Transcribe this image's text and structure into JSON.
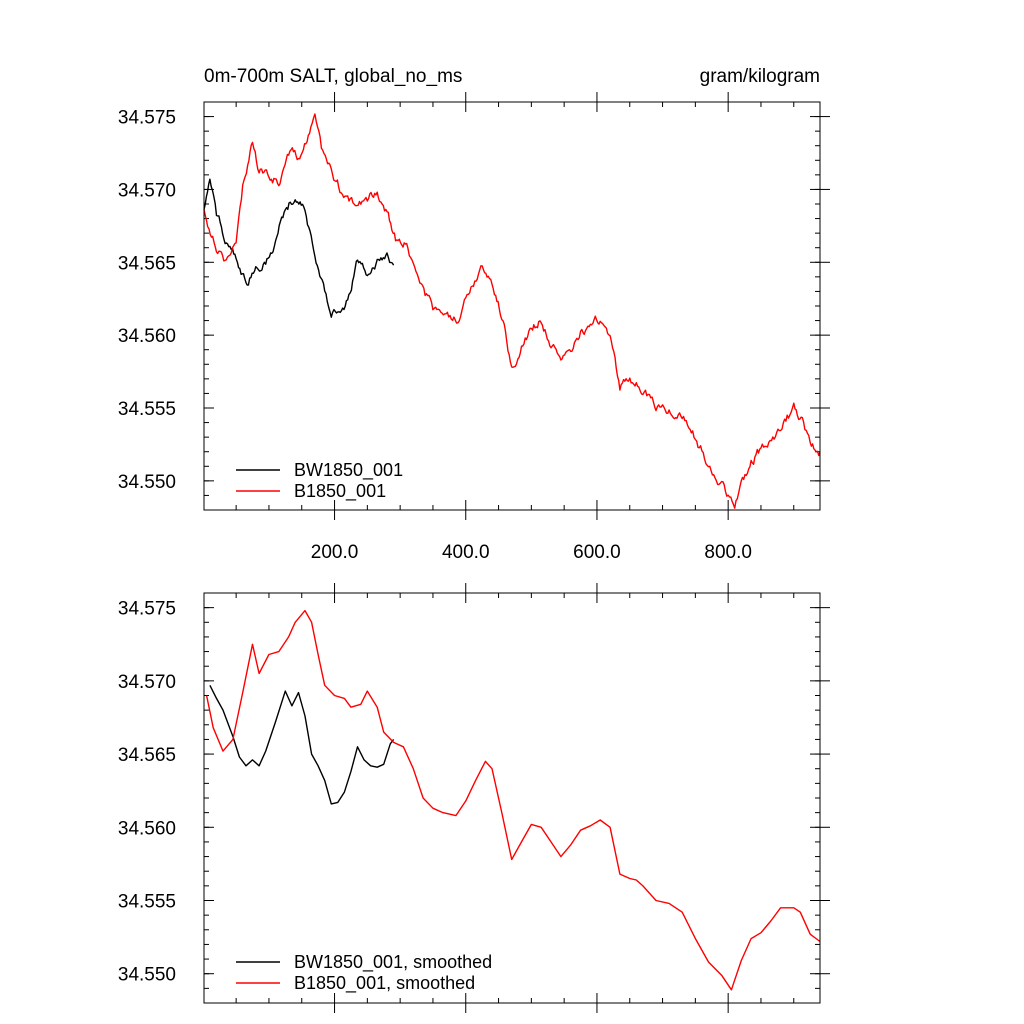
{
  "chart_data": [
    {
      "type": "line",
      "title": "0m-700m SALT, global_no_ms",
      "units": "gram/kilogram",
      "xlim": [
        1,
        940
      ],
      "ylim": [
        34.548,
        34.576
      ],
      "xticks": [
        200,
        400,
        600,
        800
      ],
      "xtick_labels": [
        "200.0",
        "400.0",
        "600.0",
        "800.0"
      ],
      "yticks": [
        34.55,
        34.555,
        34.56,
        34.565,
        34.57,
        34.575
      ],
      "ytick_labels": [
        "34.550",
        "34.555",
        "34.560",
        "34.565",
        "34.570",
        "34.575"
      ],
      "legend_position": "bottom-left",
      "series": [
        {
          "name": "BW1850_001",
          "color": "#000000",
          "x": [
            1,
            10,
            20,
            35,
            50,
            65,
            80,
            95,
            110,
            125,
            140,
            155,
            170,
            185,
            195,
            205,
            220,
            235,
            250,
            265,
            280,
            290
          ],
          "y": [
            34.5685,
            34.5705,
            34.5682,
            34.5665,
            34.5652,
            34.5634,
            34.5645,
            34.5652,
            34.5662,
            34.5688,
            34.5696,
            34.569,
            34.565,
            34.5628,
            34.561,
            34.5617,
            34.5625,
            34.5652,
            34.5643,
            34.565,
            34.5658,
            34.5648
          ]
        },
        {
          "name": "B1850_001",
          "color": "#ff0000",
          "x": [
            1,
            20,
            35,
            50,
            60,
            75,
            85,
            100,
            115,
            130,
            145,
            160,
            170,
            180,
            195,
            210,
            230,
            250,
            265,
            280,
            295,
            310,
            330,
            350,
            370,
            390,
            410,
            425,
            440,
            455,
            470,
            485,
            500,
            515,
            530,
            545,
            560,
            575,
            590,
            605,
            620,
            635,
            650,
            670,
            690,
            710,
            730,
            750,
            770,
            790,
            810,
            820,
            835,
            850,
            860,
            880,
            900,
            915,
            925,
            940
          ],
          "y": [
            34.5685,
            34.5662,
            34.5652,
            34.5662,
            34.57,
            34.5735,
            34.5712,
            34.571,
            34.5705,
            34.5725,
            34.5722,
            34.5735,
            34.5753,
            34.5728,
            34.5712,
            34.57,
            34.5688,
            34.5692,
            34.57,
            34.5685,
            34.5665,
            34.5662,
            34.5635,
            34.5618,
            34.5612,
            34.5608,
            34.5635,
            34.5648,
            34.5638,
            34.5612,
            34.558,
            34.5592,
            34.5605,
            34.561,
            34.5595,
            34.558,
            34.5588,
            34.5602,
            34.5608,
            34.561,
            34.56,
            34.5565,
            34.557,
            34.5562,
            34.5552,
            34.5548,
            34.5545,
            34.553,
            34.5512,
            34.5498,
            34.5482,
            34.5495,
            34.5512,
            34.5522,
            34.5528,
            34.5535,
            34.555,
            34.554,
            34.5525,
            34.552
          ]
        }
      ]
    },
    {
      "type": "line",
      "title": "",
      "xlim": [
        1,
        940
      ],
      "ylim": [
        34.548,
        34.576
      ],
      "yticks": [
        34.55,
        34.555,
        34.56,
        34.565,
        34.57,
        34.575
      ],
      "ytick_labels": [
        "34.550",
        "34.555",
        "34.560",
        "34.565",
        "34.570",
        "34.575"
      ],
      "legend_position": "bottom-left",
      "series": [
        {
          "name": "BW1850_001, smoothed",
          "color": "#000000",
          "x": [
            10,
            20,
            30,
            45,
            55,
            65,
            75,
            85,
            95,
            110,
            125,
            135,
            145,
            155,
            165,
            175,
            185,
            195,
            205,
            215,
            225,
            235,
            245,
            255,
            265,
            275,
            285,
            290
          ],
          "y": [
            34.5697,
            34.5688,
            34.568,
            34.5662,
            34.5648,
            34.5642,
            34.5646,
            34.5642,
            34.5652,
            34.5672,
            34.5693,
            34.5683,
            34.5692,
            34.5676,
            34.565,
            34.5642,
            34.5632,
            34.5616,
            34.5617,
            34.5624,
            34.5638,
            34.5655,
            34.5646,
            34.5642,
            34.5641,
            34.5643,
            34.5657,
            34.566
          ]
        },
        {
          "name": "B1850_001, smoothed",
          "color": "#ff0000",
          "x": [
            5,
            15,
            30,
            45,
            60,
            75,
            85,
            100,
            115,
            130,
            140,
            155,
            165,
            175,
            185,
            200,
            215,
            225,
            240,
            250,
            265,
            275,
            290,
            305,
            320,
            335,
            350,
            365,
            385,
            400,
            415,
            430,
            440,
            455,
            470,
            485,
            500,
            515,
            530,
            545,
            560,
            575,
            590,
            605,
            620,
            635,
            650,
            660,
            670,
            690,
            710,
            730,
            750,
            770,
            790,
            805,
            820,
            835,
            850,
            865,
            880,
            900,
            910,
            925,
            940
          ],
          "y": [
            34.569,
            34.5668,
            34.5652,
            34.566,
            34.5692,
            34.5725,
            34.5705,
            34.5718,
            34.572,
            34.573,
            34.574,
            34.5748,
            34.574,
            34.5718,
            34.5697,
            34.569,
            34.5688,
            34.5682,
            34.5684,
            34.5693,
            34.5682,
            34.5665,
            34.5658,
            34.5655,
            34.564,
            34.562,
            34.5613,
            34.561,
            34.5608,
            34.5618,
            34.5632,
            34.5645,
            34.564,
            34.561,
            34.5578,
            34.559,
            34.5602,
            34.56,
            34.559,
            34.558,
            34.5588,
            34.5598,
            34.5601,
            34.5605,
            34.56,
            34.5568,
            34.5565,
            34.5564,
            34.556,
            34.555,
            34.5548,
            34.5542,
            34.5524,
            34.5508,
            34.5499,
            34.5489,
            34.5509,
            34.5524,
            34.5528,
            34.5536,
            34.5545,
            34.5545,
            34.5542,
            34.5527,
            34.5522
          ]
        }
      ]
    }
  ]
}
